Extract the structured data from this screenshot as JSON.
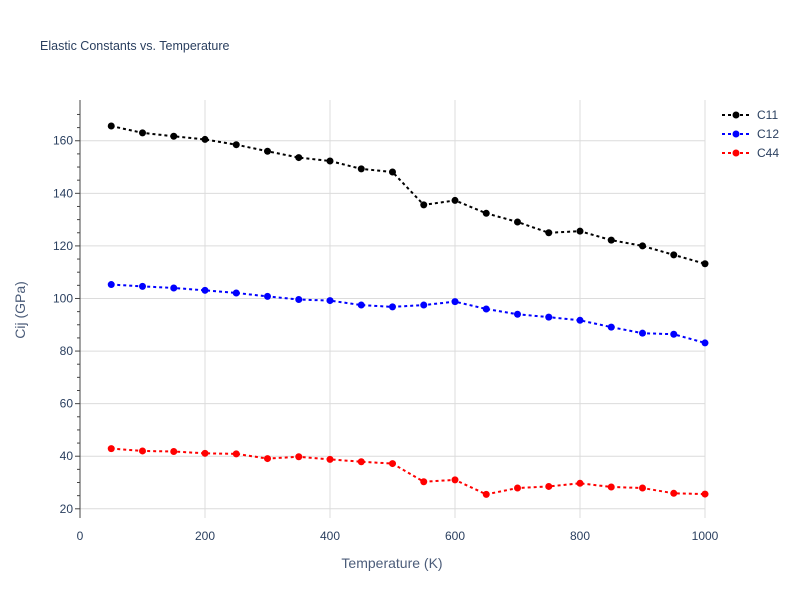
{
  "chart_data": {
    "type": "line",
    "title": "Elastic Constants vs. Temperature",
    "xlabel": "Temperature (K)",
    "ylabel": "Cij (GPa)",
    "xlim": [
      0,
      1000
    ],
    "ylim": [
      16.5,
      175.5
    ],
    "x_ticks": [
      0,
      200,
      400,
      600,
      800,
      1000
    ],
    "y_ticks": [
      20,
      40,
      60,
      80,
      100,
      120,
      140,
      160
    ],
    "grid": true,
    "legend_position": "top-right",
    "x": [
      50,
      100,
      150,
      200,
      250,
      300,
      350,
      400,
      450,
      500,
      550,
      600,
      650,
      700,
      750,
      800,
      850,
      900,
      950,
      1000
    ],
    "series": [
      {
        "name": "C11",
        "color": "#000000",
        "values": [
          165.6,
          163.0,
          161.7,
          160.5,
          158.5,
          156.0,
          153.6,
          152.3,
          149.3,
          148.1,
          135.6,
          137.3,
          132.4,
          129.1,
          125.0,
          125.6,
          122.2,
          120.0,
          116.6,
          113.2
        ]
      },
      {
        "name": "C12",
        "color": "#0000ff",
        "values": [
          105.3,
          104.6,
          104.0,
          103.1,
          102.1,
          100.8,
          99.6,
          99.2,
          97.5,
          96.8,
          97.5,
          98.8,
          96.0,
          94.0,
          92.9,
          91.7,
          89.1,
          86.8,
          86.4,
          83.1
        ]
      },
      {
        "name": "C44",
        "color": "#ff0000",
        "values": [
          42.9,
          42.0,
          41.8,
          41.1,
          40.9,
          39.1,
          39.8,
          38.8,
          37.9,
          37.2,
          30.3,
          31.0,
          25.5,
          27.9,
          28.5,
          29.7,
          28.3,
          27.9,
          25.9,
          25.6
        ]
      }
    ]
  }
}
